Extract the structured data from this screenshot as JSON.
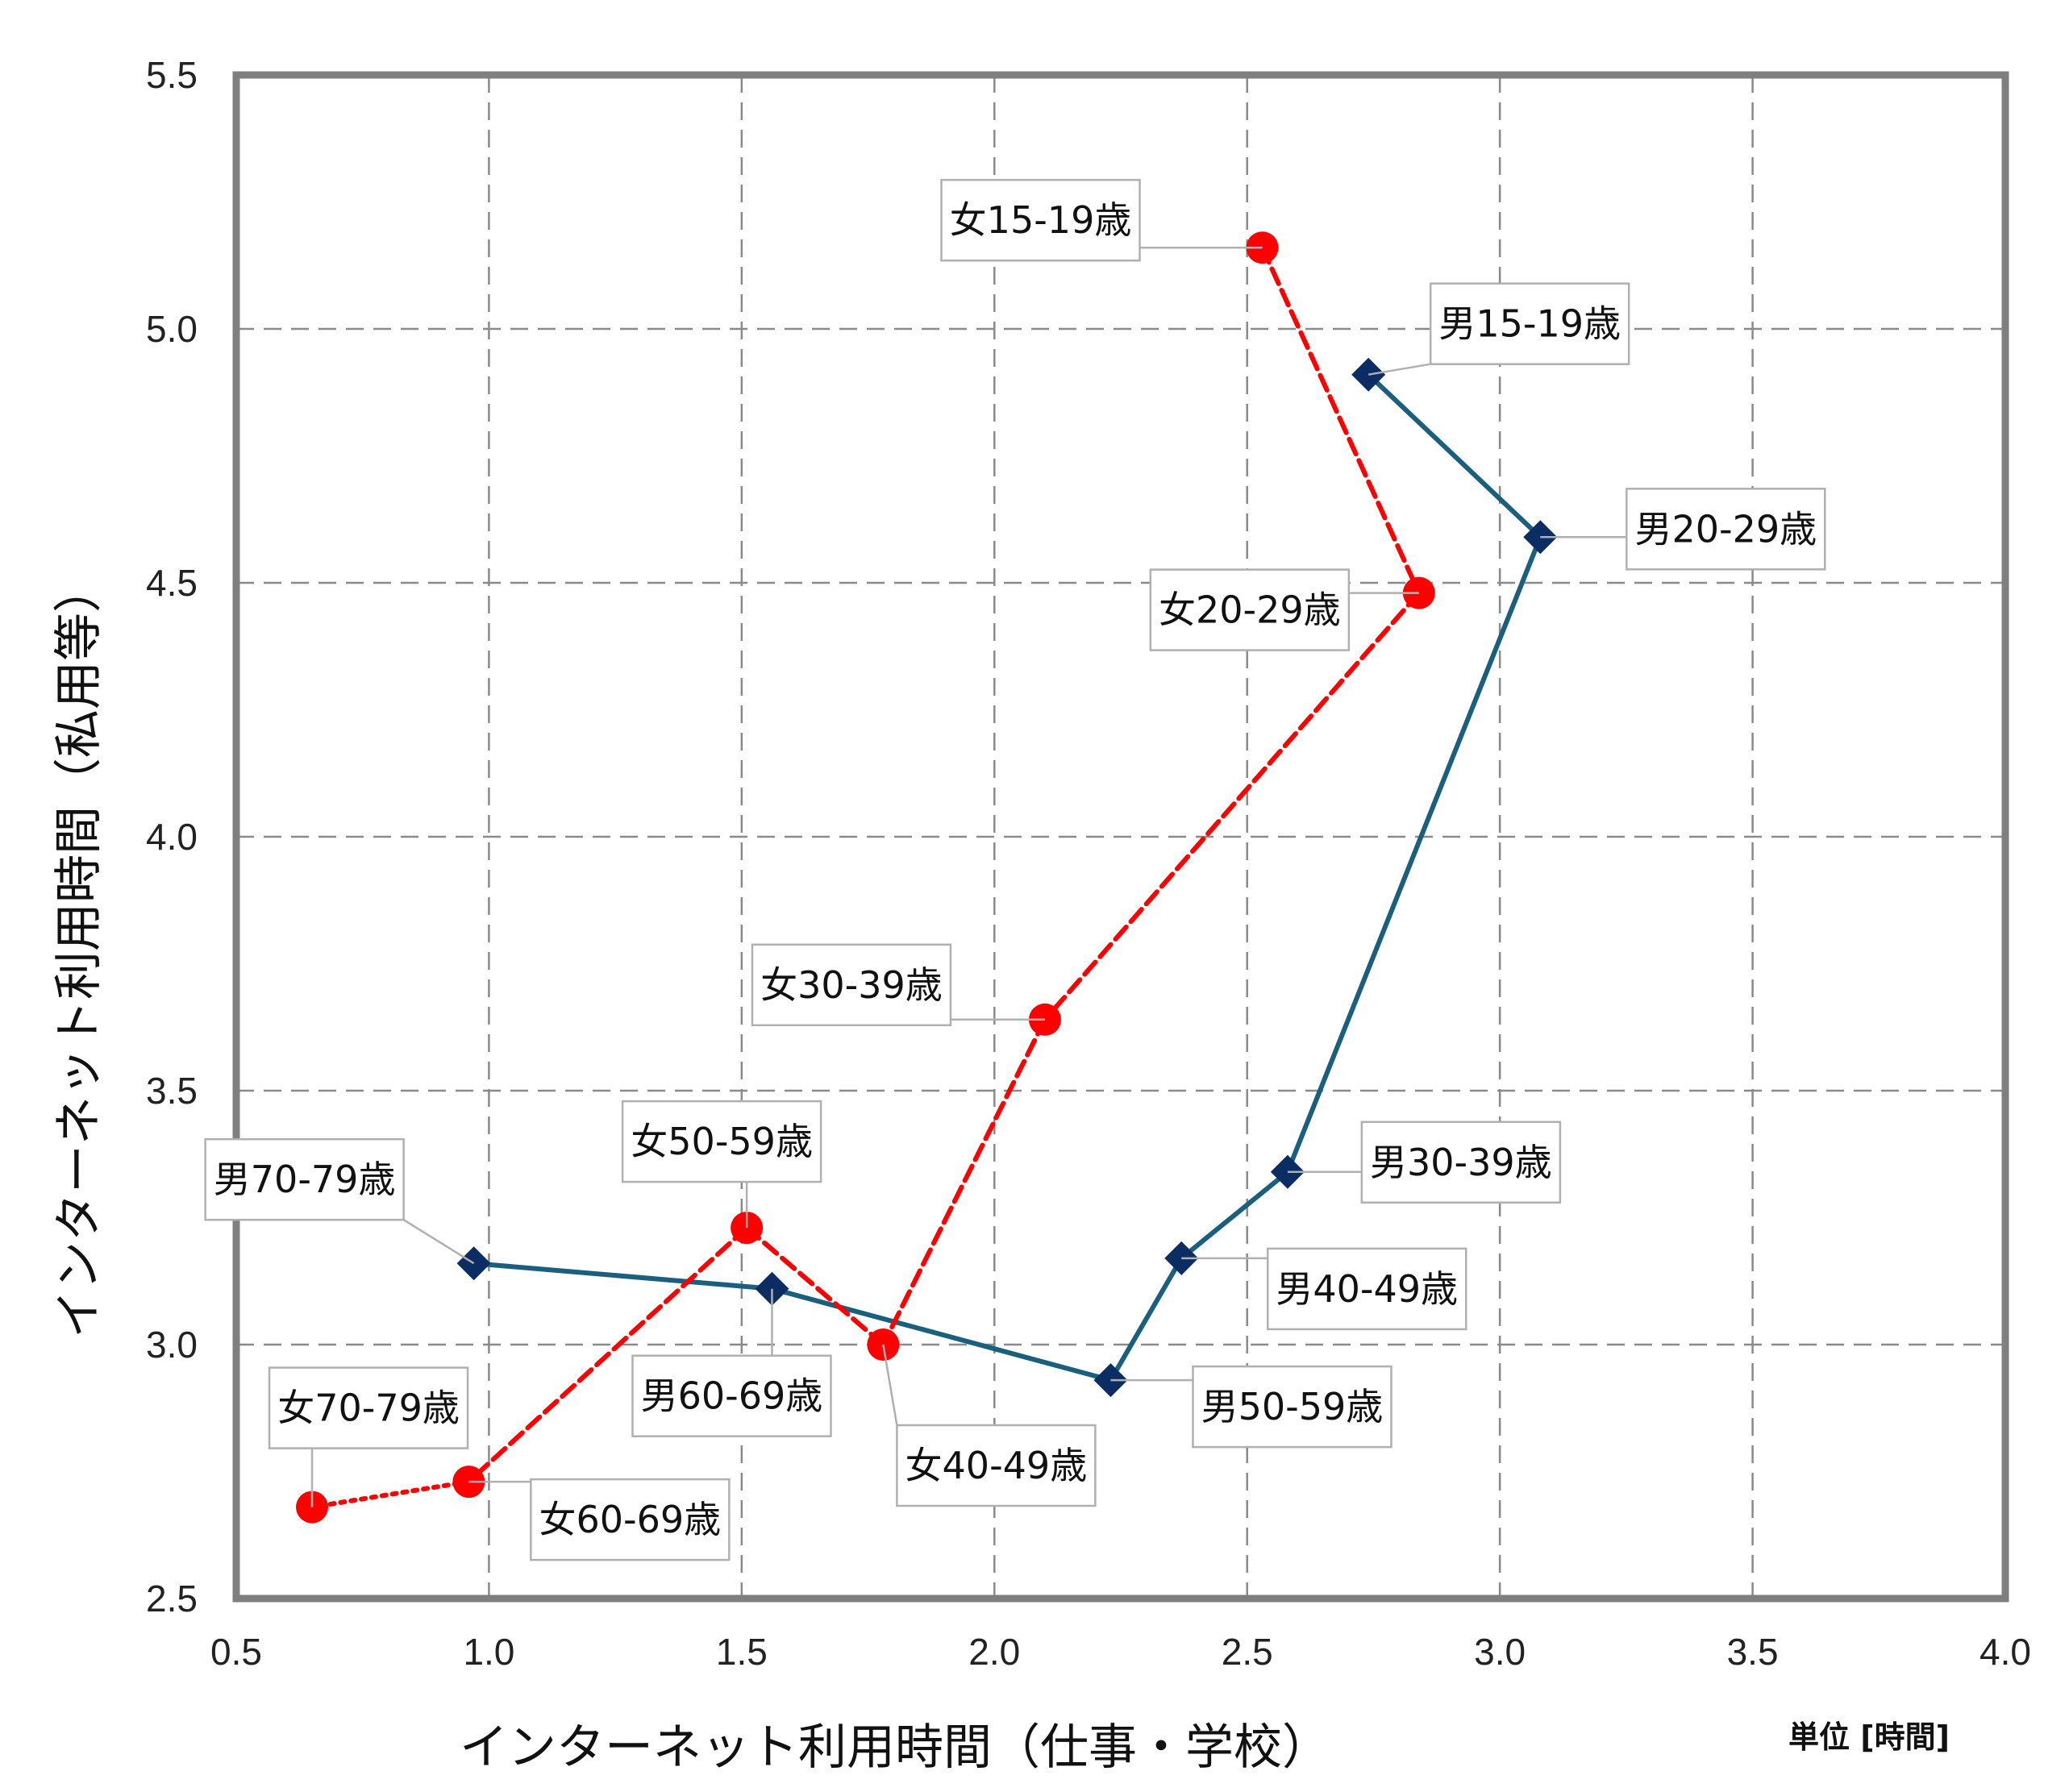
{
  "chart_data": {
    "type": "scatter",
    "xlabel": "インターネット利用時間（仕事・学校）",
    "ylabel": "インターネット利用時間（私用等）",
    "unit_note": "単位 [時間]",
    "xlim": [
      0.5,
      4.0
    ],
    "ylim": [
      2.5,
      5.5
    ],
    "x_ticks": [
      "0.5",
      "1.0",
      "1.5",
      "2.0",
      "2.5",
      "3.0",
      "3.5",
      "4.0"
    ],
    "y_ticks": [
      "2.5",
      "3.0",
      "3.5",
      "4.0",
      "4.5",
      "5.0",
      "5.5"
    ],
    "grid": true,
    "series": [
      {
        "marker": "diamond",
        "color": "#0b2d63",
        "line_color": "#1a5f7e",
        "line_style": "solid",
        "points": [
          {
            "label": "男15-19歳",
            "x": 2.74,
            "y": 4.91
          },
          {
            "label": "男20-29歳",
            "x": 3.08,
            "y": 4.59
          },
          {
            "label": "男30-39歳",
            "x": 2.58,
            "y": 3.34
          },
          {
            "label": "男40-49歳",
            "x": 2.37,
            "y": 3.17
          },
          {
            "label": "男50-59歳",
            "x": 2.23,
            "y": 2.93
          },
          {
            "label": "男60-69歳",
            "x": 1.56,
            "y": 3.11
          },
          {
            "label": "男70-79歳",
            "x": 0.97,
            "y": 3.16
          }
        ]
      },
      {
        "marker": "circle",
        "color": "#ff0000",
        "line_color": "#ff0000",
        "line_style": "dashed",
        "last_segment_style": "dotted",
        "points": [
          {
            "label": "女15-19歳",
            "x": 2.53,
            "y": 5.16
          },
          {
            "label": "女20-29歳",
            "x": 2.84,
            "y": 4.48
          },
          {
            "label": "女30-39歳",
            "x": 2.1,
            "y": 3.64
          },
          {
            "label": "女40-49歳",
            "x": 1.78,
            "y": 3.0
          },
          {
            "label": "女50-59歳",
            "x": 1.51,
            "y": 3.23
          },
          {
            "label": "女60-69歳",
            "x": 0.96,
            "y": 2.73
          },
          {
            "label": "女70-79歳",
            "x": 0.65,
            "y": 2.68
          }
        ]
      }
    ]
  }
}
